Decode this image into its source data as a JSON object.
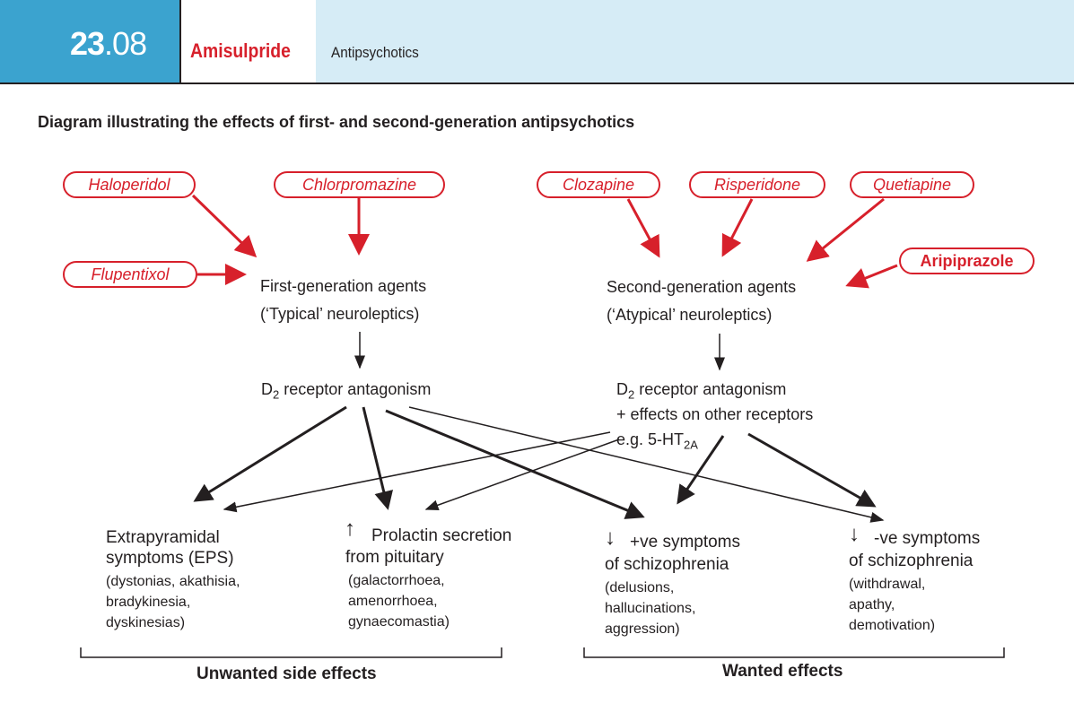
{
  "header": {
    "chapter_num": "23",
    "section_num": ".08",
    "title": "Amisulpride",
    "subtitle": "Antipsychotics"
  },
  "diagram_title": "Diagram illustrating the effects of first- and second-generation antipsychotics",
  "first_gen_drugs": [
    "Haloperidol",
    "Chlorpromazine",
    "Flupentixol"
  ],
  "second_gen_drugs": [
    "Clozapine",
    "Risperidone",
    "Quetiapine",
    "Aripiprazole"
  ],
  "first_gen": {
    "line1": "First-generation agents",
    "line2": "(‘Typical’ neuroleptics)",
    "mechanism_pre": "D",
    "mechanism_sub": "2",
    "mechanism_post": " receptor antagonism"
  },
  "second_gen": {
    "line1": "Second-generation agents",
    "line2": "(‘Atypical’ neuroleptics)",
    "mechanism_pre": "D",
    "mechanism_sub": "2",
    "mechanism_post": " receptor antagonism",
    "mechanism_line2": "+ effects on other receptors",
    "mechanism_line3_pre": "e.g. 5-HT",
    "mechanism_line3_sub": "2A"
  },
  "effects": {
    "eps": {
      "line1": "Extrapyramidal",
      "line2": "symptoms (EPS)",
      "details": [
        "(dystonias, akathisia,",
        "bradykinesia,",
        "dyskinesias)"
      ]
    },
    "prolactin": {
      "arrow": "↑",
      "line1": "Prolactin secretion",
      "line2": "from pituitary",
      "details": [
        "(galactorrhoea,",
        "amenorrhoea,",
        "gynaecomastia)"
      ]
    },
    "positive": {
      "arrow": "↓",
      "line1": "+ve  symptoms",
      "line2": "of schizophrenia",
      "details": [
        "(delusions,",
        "hallucinations,",
        "aggression)"
      ]
    },
    "negative": {
      "arrow": "↓",
      "line1": "-ve symptoms",
      "line2": "of schizophrenia",
      "details": [
        "(withdrawal,",
        "apathy,",
        "demotivation)"
      ]
    }
  },
  "groups": {
    "unwanted": "Unwanted side effects",
    "wanted": "Wanted effects"
  },
  "colors": {
    "header_blue": "#3ba3cf",
    "header_light": "#d6ecf6",
    "accent_red": "#d7202b",
    "ink": "#231f20"
  }
}
